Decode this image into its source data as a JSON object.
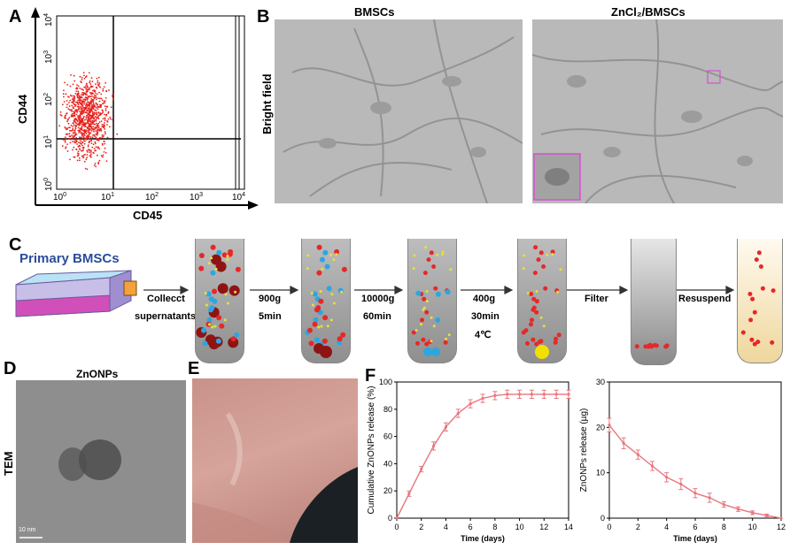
{
  "panels": {
    "A": {
      "label": "A",
      "ylabel": "CD44",
      "xlabel": "CD45",
      "ticks": [
        "0",
        "1",
        "2",
        "3",
        "4"
      ]
    },
    "B": {
      "label": "B",
      "left_title": "BMSCs",
      "right_title": "ZnCl₂/BMSCs",
      "row_label": "Bright field"
    },
    "C": {
      "label": "C",
      "source_label": "Primary BMSCs",
      "steps": [
        {
          "line1": "Collecct",
          "line2": "supernatants"
        },
        {
          "line1": "900g",
          "line2": "5min"
        },
        {
          "line1": "10000g",
          "line2": "60min"
        },
        {
          "line1": "400g",
          "line2": "30min",
          "line3": "4℃"
        },
        {
          "line1": "Filter"
        },
        {
          "line1": "Resuspend"
        }
      ]
    },
    "D": {
      "label": "D",
      "title": "ZnONPs",
      "row_label": "TEM",
      "scale": "10 nm"
    },
    "E": {
      "label": "E"
    },
    "F": {
      "label": "F"
    }
  },
  "chart_data": [
    {
      "type": "line",
      "xlabel": "Time (days)",
      "ylabel": "Cumulative ZnONPs release (%)",
      "xlim": [
        0,
        14
      ],
      "ylim": [
        0,
        100
      ],
      "xticks": [
        0,
        2,
        4,
        6,
        8,
        10,
        12,
        14
      ],
      "yticks": [
        0,
        20,
        40,
        60,
        80,
        100
      ],
      "x": [
        0,
        1,
        2,
        3,
        4,
        5,
        6,
        7,
        8,
        9,
        10,
        11,
        12,
        13,
        14
      ],
      "y": [
        0,
        18,
        36,
        53,
        67,
        77,
        84,
        88,
        90,
        91,
        91,
        91,
        91,
        91,
        91
      ],
      "err": [
        0,
        2,
        2,
        3,
        3,
        3,
        3,
        3,
        3,
        3,
        3,
        3,
        3,
        3,
        3
      ],
      "color": "#e8767d"
    },
    {
      "type": "line",
      "xlabel": "Time (days)",
      "ylabel": "ZnONPs release (µg)",
      "xlim": [
        0,
        12
      ],
      "ylim": [
        0,
        30
      ],
      "xticks": [
        0,
        2,
        4,
        6,
        8,
        10,
        12
      ],
      "yticks": [
        0,
        10,
        20,
        30
      ],
      "x": [
        0,
        1,
        2,
        3,
        4,
        5,
        6,
        7,
        8,
        9,
        10,
        11,
        12
      ],
      "y": [
        20.5,
        16.5,
        14,
        11.5,
        9,
        7.5,
        5.5,
        4.5,
        3,
        2,
        1.2,
        0.6,
        0
      ],
      "err": [
        1.5,
        1.2,
        1,
        1,
        1,
        1.2,
        1,
        1,
        0.6,
        0.5,
        0.4,
        0.3,
        0
      ],
      "color": "#e8767d"
    }
  ]
}
